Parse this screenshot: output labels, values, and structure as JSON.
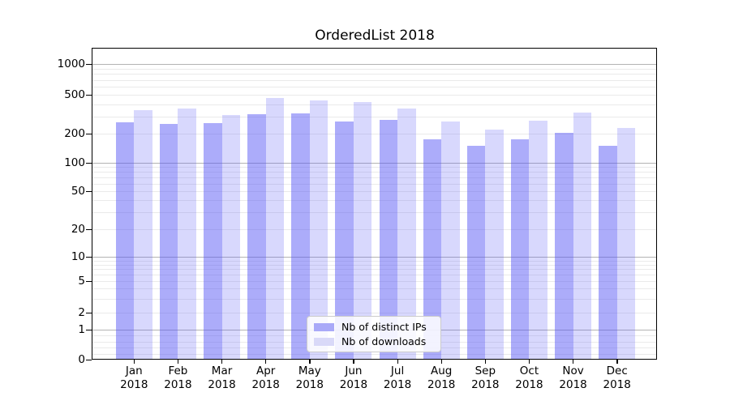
{
  "title": "OrderedList 2018",
  "chart_data": {
    "type": "bar",
    "title": "OrderedList 2018",
    "categories": [
      "Jan",
      "Feb",
      "Mar",
      "Apr",
      "May",
      "Jun",
      "Jul",
      "Aug",
      "Sep",
      "Oct",
      "Nov",
      "Dec"
    ],
    "year_label": "2018",
    "series": [
      {
        "name": "Nb of distinct IPs",
        "color": "#5555f5",
        "alpha": 0.49,
        "swatch_hex": "#a9a9f8",
        "values": [
          260,
          250,
          255,
          315,
          325,
          265,
          275,
          175,
          150,
          175,
          205,
          150
        ]
      },
      {
        "name": "Nb of downloads",
        "color": "#5555f5",
        "alpha": 0.23,
        "swatch_hex": "#d9d9f8",
        "values": [
          350,
          365,
          310,
          460,
          440,
          420,
          365,
          265,
          220,
          270,
          330,
          230
        ]
      }
    ],
    "yscale": "symlog",
    "y_tick_labels": [
      1000,
      500,
      200,
      100,
      50,
      20,
      10,
      5,
      2,
      1,
      0
    ],
    "ylim": [
      0,
      1450
    ],
    "xlabel": "",
    "ylabel": "",
    "grid": "both (major darker, minor light)",
    "legend_position": "inside bottom-center"
  }
}
